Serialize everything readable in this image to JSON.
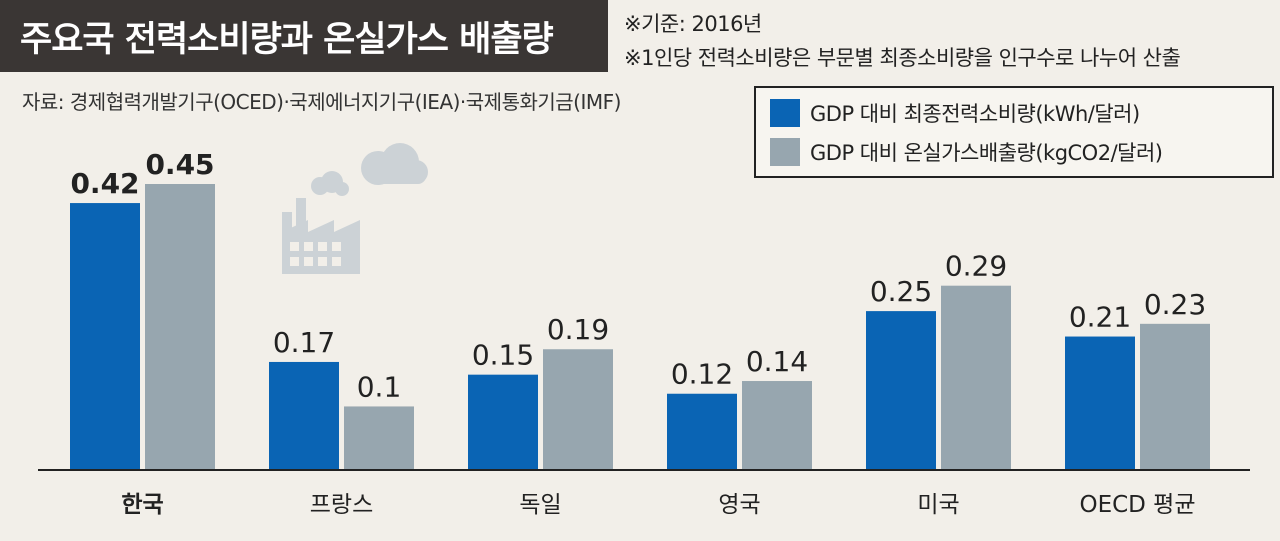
{
  "title": "주요국 전력소비량과 온실가스 배출량",
  "notes": [
    "※기준: 2016년",
    "※1인당 전력소비량은 부문별 최종소비량을 인구수로 나누어 산출"
  ],
  "source": "자료: 경제협력개발기구(OCED)·국제에너지기구(IEA)·국제통화기금(IMF)",
  "colors": {
    "series1": "#0a64b4",
    "series2": "#97a6af",
    "title_bg": "#3a3634",
    "background": "#f2efe9"
  },
  "chart_data": {
    "type": "bar",
    "categories": [
      "한국",
      "프랑스",
      "독일",
      "영국",
      "미국",
      "OECD 평균"
    ],
    "series": [
      {
        "name": "GDP 대비 최종전력소비량(kWh/달러)",
        "values": [
          0.42,
          0.17,
          0.15,
          0.12,
          0.25,
          0.21
        ],
        "value_labels": [
          "0.42",
          "0.17",
          "0.15",
          "0.12",
          "0.25",
          "0.21"
        ]
      },
      {
        "name": "GDP 대비 온실가스배출량(kgCO2/달러)",
        "values": [
          0.45,
          0.1,
          0.19,
          0.14,
          0.29,
          0.23
        ],
        "value_labels": [
          "0.45",
          "0.1",
          "0.19",
          "0.14",
          "0.29",
          "0.23"
        ]
      }
    ],
    "ylim": [
      0,
      0.45
    ],
    "legend_position": "top-right",
    "grid": false
  }
}
